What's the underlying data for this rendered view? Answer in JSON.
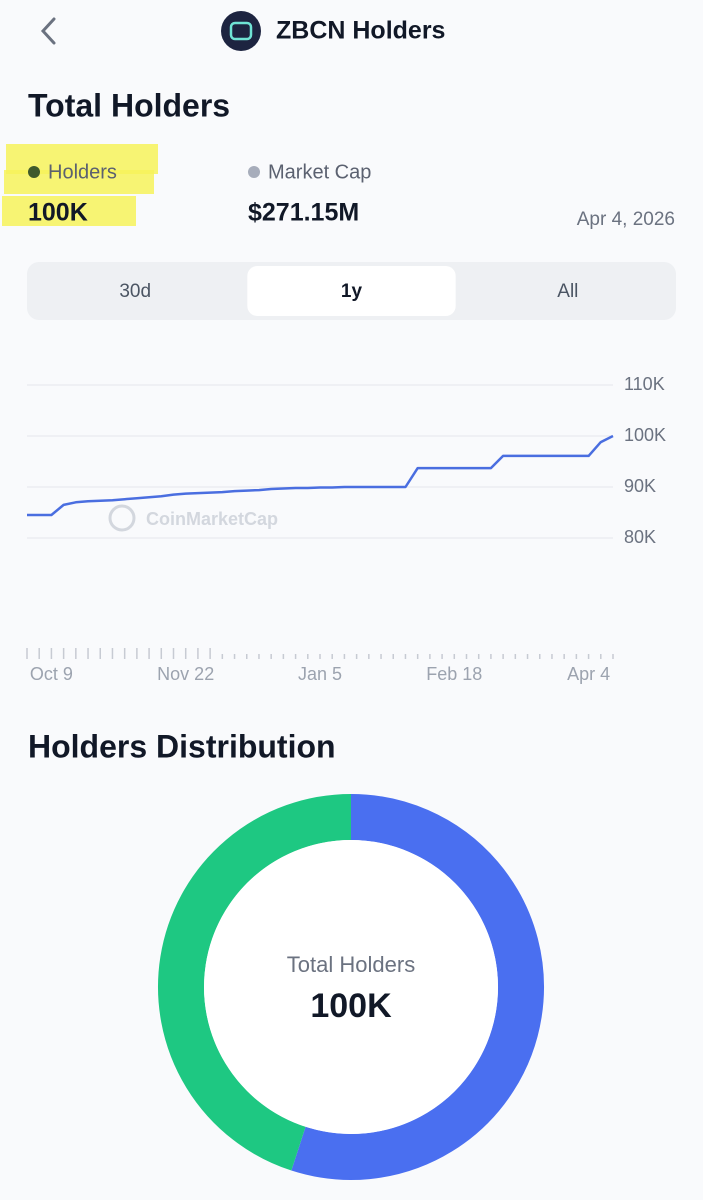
{
  "header": {
    "title": "ZBCN Holders"
  },
  "summary": {
    "title": "Total Holders",
    "metrics": [
      {
        "label": "Holders",
        "value": "100K",
        "color": "#3f5a2c"
      },
      {
        "label": "Market Cap",
        "value": "$271.15M",
        "color": "#a7adbb"
      }
    ],
    "date": "Apr 4, 2026"
  },
  "tabs": {
    "items": [
      "30d",
      "1y",
      "All"
    ],
    "selected": 1
  },
  "watermark": "CoinMarketCap",
  "distribution": {
    "title": "Holders Distribution",
    "center_label": "Total Holders",
    "center_value": "100K"
  },
  "chart_data": [
    {
      "type": "line",
      "color": "#4a6ee0",
      "categories": [
        null,
        null,
        "Oct 9",
        null,
        null,
        null,
        null,
        null,
        null,
        null,
        null,
        null,
        null,
        "Nov 22",
        null,
        null,
        null,
        null,
        null,
        null,
        null,
        null,
        null,
        null,
        "Jan 5",
        null,
        null,
        null,
        null,
        null,
        null,
        null,
        null,
        null,
        null,
        "Feb 18",
        null,
        null,
        null,
        null,
        null,
        null,
        null,
        null,
        null,
        null,
        "Apr 4",
        null,
        null
      ],
      "values": [
        84500,
        84500,
        84500,
        86500,
        87000,
        87200,
        87300,
        87400,
        87600,
        87800,
        88000,
        88200,
        88500,
        88700,
        88800,
        88900,
        89000,
        89200,
        89300,
        89400,
        89600,
        89700,
        89800,
        89800,
        89900,
        89900,
        90000,
        90000,
        90000,
        90000,
        90000,
        90000,
        93700,
        93700,
        93700,
        93700,
        93700,
        93700,
        93700,
        96100,
        96100,
        96100,
        96100,
        96100,
        96100,
        96100,
        96100,
        98800,
        100000
      ],
      "ylim": [
        80000,
        110000
      ],
      "yticks": [
        {
          "value": 80000,
          "label": "80K"
        },
        {
          "value": 90000,
          "label": "90K"
        },
        {
          "value": 100000,
          "label": "100K"
        },
        {
          "value": 110000,
          "label": "110K"
        }
      ],
      "grid": true
    },
    {
      "type": "pie",
      "values": [
        55,
        45
      ],
      "colors": [
        "#4a6ff0",
        "#1ec882"
      ]
    }
  ]
}
